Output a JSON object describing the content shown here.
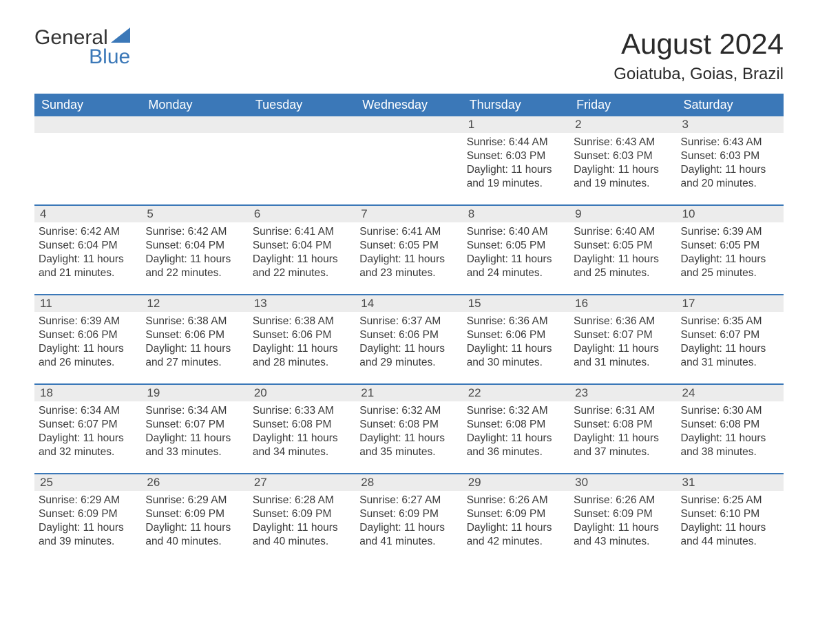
{
  "brand": {
    "word1": "General",
    "word2": "Blue",
    "accent_color": "#3b78b8",
    "text_color": "#333333"
  },
  "title": "August 2024",
  "location": "Goiatuba, Goias, Brazil",
  "header_bg": "#3b78b8",
  "header_fg": "#ffffff",
  "daynum_bg": "#ececec",
  "weekdays": [
    "Sunday",
    "Monday",
    "Tuesday",
    "Wednesday",
    "Thursday",
    "Friday",
    "Saturday"
  ],
  "weeks": [
    [
      {
        "n": "",
        "empty": true
      },
      {
        "n": "",
        "empty": true
      },
      {
        "n": "",
        "empty": true
      },
      {
        "n": "",
        "empty": true
      },
      {
        "n": "1",
        "sunrise": "Sunrise: 6:44 AM",
        "sunset": "Sunset: 6:03 PM",
        "d1": "Daylight: 11 hours",
        "d2": "and 19 minutes."
      },
      {
        "n": "2",
        "sunrise": "Sunrise: 6:43 AM",
        "sunset": "Sunset: 6:03 PM",
        "d1": "Daylight: 11 hours",
        "d2": "and 19 minutes."
      },
      {
        "n": "3",
        "sunrise": "Sunrise: 6:43 AM",
        "sunset": "Sunset: 6:03 PM",
        "d1": "Daylight: 11 hours",
        "d2": "and 20 minutes."
      }
    ],
    [
      {
        "n": "4",
        "sunrise": "Sunrise: 6:42 AM",
        "sunset": "Sunset: 6:04 PM",
        "d1": "Daylight: 11 hours",
        "d2": "and 21 minutes."
      },
      {
        "n": "5",
        "sunrise": "Sunrise: 6:42 AM",
        "sunset": "Sunset: 6:04 PM",
        "d1": "Daylight: 11 hours",
        "d2": "and 22 minutes."
      },
      {
        "n": "6",
        "sunrise": "Sunrise: 6:41 AM",
        "sunset": "Sunset: 6:04 PM",
        "d1": "Daylight: 11 hours",
        "d2": "and 22 minutes."
      },
      {
        "n": "7",
        "sunrise": "Sunrise: 6:41 AM",
        "sunset": "Sunset: 6:05 PM",
        "d1": "Daylight: 11 hours",
        "d2": "and 23 minutes."
      },
      {
        "n": "8",
        "sunrise": "Sunrise: 6:40 AM",
        "sunset": "Sunset: 6:05 PM",
        "d1": "Daylight: 11 hours",
        "d2": "and 24 minutes."
      },
      {
        "n": "9",
        "sunrise": "Sunrise: 6:40 AM",
        "sunset": "Sunset: 6:05 PM",
        "d1": "Daylight: 11 hours",
        "d2": "and 25 minutes."
      },
      {
        "n": "10",
        "sunrise": "Sunrise: 6:39 AM",
        "sunset": "Sunset: 6:05 PM",
        "d1": "Daylight: 11 hours",
        "d2": "and 25 minutes."
      }
    ],
    [
      {
        "n": "11",
        "sunrise": "Sunrise: 6:39 AM",
        "sunset": "Sunset: 6:06 PM",
        "d1": "Daylight: 11 hours",
        "d2": "and 26 minutes."
      },
      {
        "n": "12",
        "sunrise": "Sunrise: 6:38 AM",
        "sunset": "Sunset: 6:06 PM",
        "d1": "Daylight: 11 hours",
        "d2": "and 27 minutes."
      },
      {
        "n": "13",
        "sunrise": "Sunrise: 6:38 AM",
        "sunset": "Sunset: 6:06 PM",
        "d1": "Daylight: 11 hours",
        "d2": "and 28 minutes."
      },
      {
        "n": "14",
        "sunrise": "Sunrise: 6:37 AM",
        "sunset": "Sunset: 6:06 PM",
        "d1": "Daylight: 11 hours",
        "d2": "and 29 minutes."
      },
      {
        "n": "15",
        "sunrise": "Sunrise: 6:36 AM",
        "sunset": "Sunset: 6:06 PM",
        "d1": "Daylight: 11 hours",
        "d2": "and 30 minutes."
      },
      {
        "n": "16",
        "sunrise": "Sunrise: 6:36 AM",
        "sunset": "Sunset: 6:07 PM",
        "d1": "Daylight: 11 hours",
        "d2": "and 31 minutes."
      },
      {
        "n": "17",
        "sunrise": "Sunrise: 6:35 AM",
        "sunset": "Sunset: 6:07 PM",
        "d1": "Daylight: 11 hours",
        "d2": "and 31 minutes."
      }
    ],
    [
      {
        "n": "18",
        "sunrise": "Sunrise: 6:34 AM",
        "sunset": "Sunset: 6:07 PM",
        "d1": "Daylight: 11 hours",
        "d2": "and 32 minutes."
      },
      {
        "n": "19",
        "sunrise": "Sunrise: 6:34 AM",
        "sunset": "Sunset: 6:07 PM",
        "d1": "Daylight: 11 hours",
        "d2": "and 33 minutes."
      },
      {
        "n": "20",
        "sunrise": "Sunrise: 6:33 AM",
        "sunset": "Sunset: 6:08 PM",
        "d1": "Daylight: 11 hours",
        "d2": "and 34 minutes."
      },
      {
        "n": "21",
        "sunrise": "Sunrise: 6:32 AM",
        "sunset": "Sunset: 6:08 PM",
        "d1": "Daylight: 11 hours",
        "d2": "and 35 minutes."
      },
      {
        "n": "22",
        "sunrise": "Sunrise: 6:32 AM",
        "sunset": "Sunset: 6:08 PM",
        "d1": "Daylight: 11 hours",
        "d2": "and 36 minutes."
      },
      {
        "n": "23",
        "sunrise": "Sunrise: 6:31 AM",
        "sunset": "Sunset: 6:08 PM",
        "d1": "Daylight: 11 hours",
        "d2": "and 37 minutes."
      },
      {
        "n": "24",
        "sunrise": "Sunrise: 6:30 AM",
        "sunset": "Sunset: 6:08 PM",
        "d1": "Daylight: 11 hours",
        "d2": "and 38 minutes."
      }
    ],
    [
      {
        "n": "25",
        "sunrise": "Sunrise: 6:29 AM",
        "sunset": "Sunset: 6:09 PM",
        "d1": "Daylight: 11 hours",
        "d2": "and 39 minutes."
      },
      {
        "n": "26",
        "sunrise": "Sunrise: 6:29 AM",
        "sunset": "Sunset: 6:09 PM",
        "d1": "Daylight: 11 hours",
        "d2": "and 40 minutes."
      },
      {
        "n": "27",
        "sunrise": "Sunrise: 6:28 AM",
        "sunset": "Sunset: 6:09 PM",
        "d1": "Daylight: 11 hours",
        "d2": "and 40 minutes."
      },
      {
        "n": "28",
        "sunrise": "Sunrise: 6:27 AM",
        "sunset": "Sunset: 6:09 PM",
        "d1": "Daylight: 11 hours",
        "d2": "and 41 minutes."
      },
      {
        "n": "29",
        "sunrise": "Sunrise: 6:26 AM",
        "sunset": "Sunset: 6:09 PM",
        "d1": "Daylight: 11 hours",
        "d2": "and 42 minutes."
      },
      {
        "n": "30",
        "sunrise": "Sunrise: 6:26 AM",
        "sunset": "Sunset: 6:09 PM",
        "d1": "Daylight: 11 hours",
        "d2": "and 43 minutes."
      },
      {
        "n": "31",
        "sunrise": "Sunrise: 6:25 AM",
        "sunset": "Sunset: 6:10 PM",
        "d1": "Daylight: 11 hours",
        "d2": "and 44 minutes."
      }
    ]
  ]
}
